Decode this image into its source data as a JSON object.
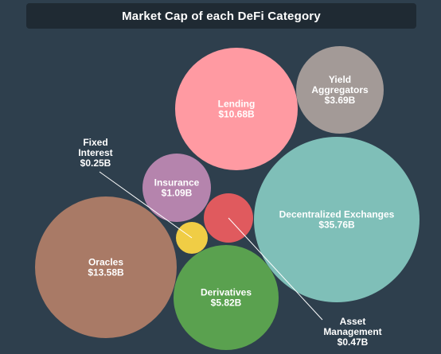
{
  "chart_data": {
    "type": "bubble",
    "title": "Market Cap of each DeFi Category",
    "bubbles": [
      {
        "name": "Lending",
        "value": 10.68,
        "value_label": "$10.68B",
        "color": "#ff9aa2"
      },
      {
        "name": "Yield Aggregators",
        "lines": [
          "Yield",
          "Aggregators"
        ],
        "value": 3.69,
        "value_label": "$3.69B",
        "color": "#a39a97"
      },
      {
        "name": "Decentralized Exchanges",
        "value": 35.76,
        "value_label": "$35.76B",
        "color": "#7fbfb8"
      },
      {
        "name": "Insurance",
        "value": 1.09,
        "value_label": "$1.09B",
        "color": "#b584ad"
      },
      {
        "name": "Oracles",
        "value": 13.58,
        "value_label": "$13.58B",
        "color": "#a97a66"
      },
      {
        "name": "Derivatives",
        "value": 5.82,
        "value_label": "$5.82B",
        "color": "#5aa14f"
      },
      {
        "name": "Fixed Interest",
        "lines": [
          "Fixed",
          "Interest"
        ],
        "value": 0.25,
        "value_label": "$0.25B",
        "color": "#f0cd45"
      },
      {
        "name": "Asset Management",
        "lines": [
          "Asset",
          "Management"
        ],
        "value": 0.47,
        "value_label": "$0.47B",
        "color": "#e05a5e"
      }
    ]
  }
}
